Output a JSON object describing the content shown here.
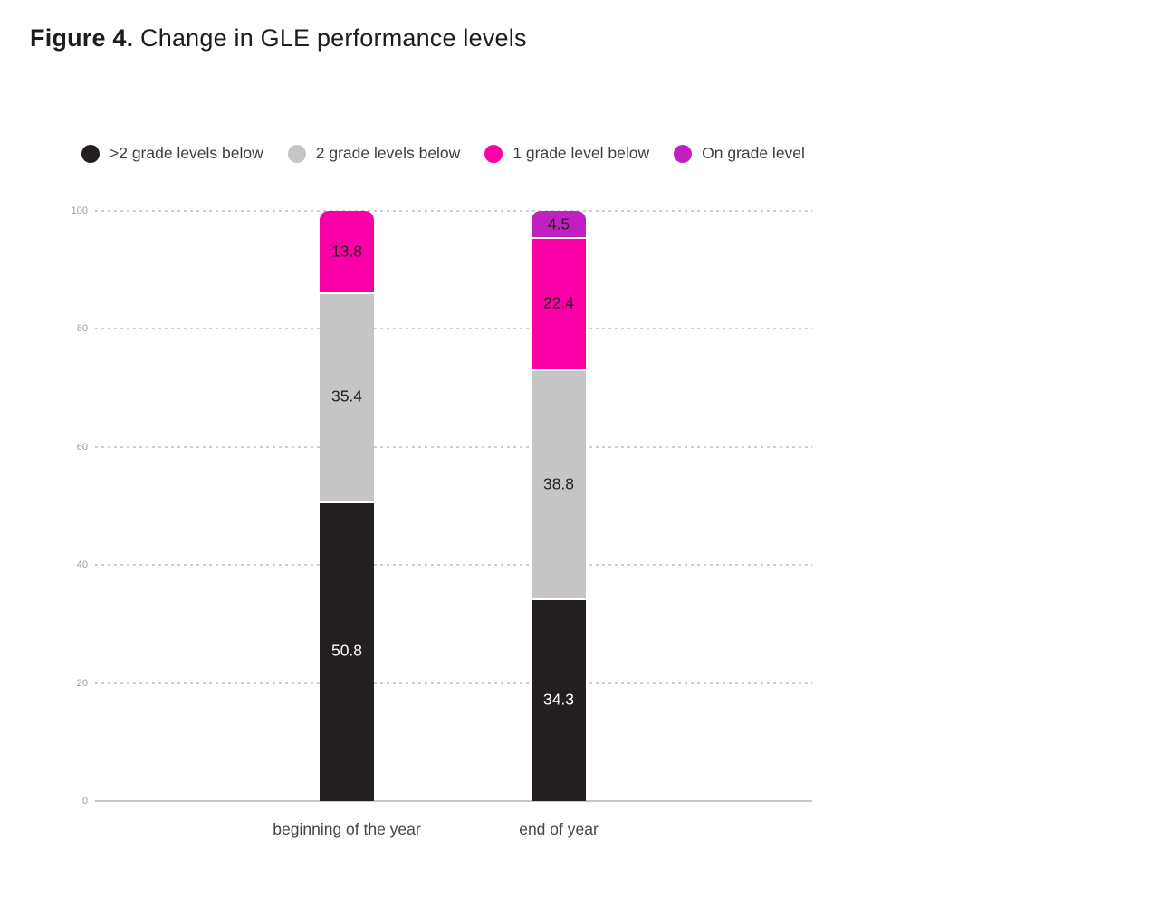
{
  "title": {
    "prefix": "Figure 4.",
    "text": "Change in GLE performance levels"
  },
  "chart_data": {
    "type": "bar",
    "stacked": true,
    "title": "Figure 4. Change in GLE performance levels",
    "categories": [
      "beginning of the year",
      "end of year"
    ],
    "series": [
      {
        "name": ">2 grade levels below",
        "color": "#231f20",
        "label_color": "#ffffff",
        "values": [
          50.8,
          34.3
        ]
      },
      {
        "name": "2 grade levels below",
        "color": "#c5c5c5",
        "label_color": "#231f20",
        "values": [
          35.4,
          38.8
        ]
      },
      {
        "name": "1 grade level below",
        "color": "#fb00a6",
        "label_color": "#231f20",
        "values": [
          13.8,
          22.4
        ]
      },
      {
        "name": "On grade level",
        "color": "#c120c1",
        "label_color": "#231f20",
        "values": [
          0,
          4.5
        ]
      }
    ],
    "ylim": [
      0,
      100
    ],
    "yticks": [
      0,
      20,
      40,
      60,
      80,
      100
    ],
    "grid": "horizontal-dashed",
    "legend_position": "top",
    "colors": {
      "background": "#ffffff",
      "gridline": "#cfcfcf",
      "axis_line": "#c6c6c6",
      "tick_text": "#9b9b9b",
      "category_text": "#454545",
      "legend_text": "#3d3d3d"
    }
  }
}
